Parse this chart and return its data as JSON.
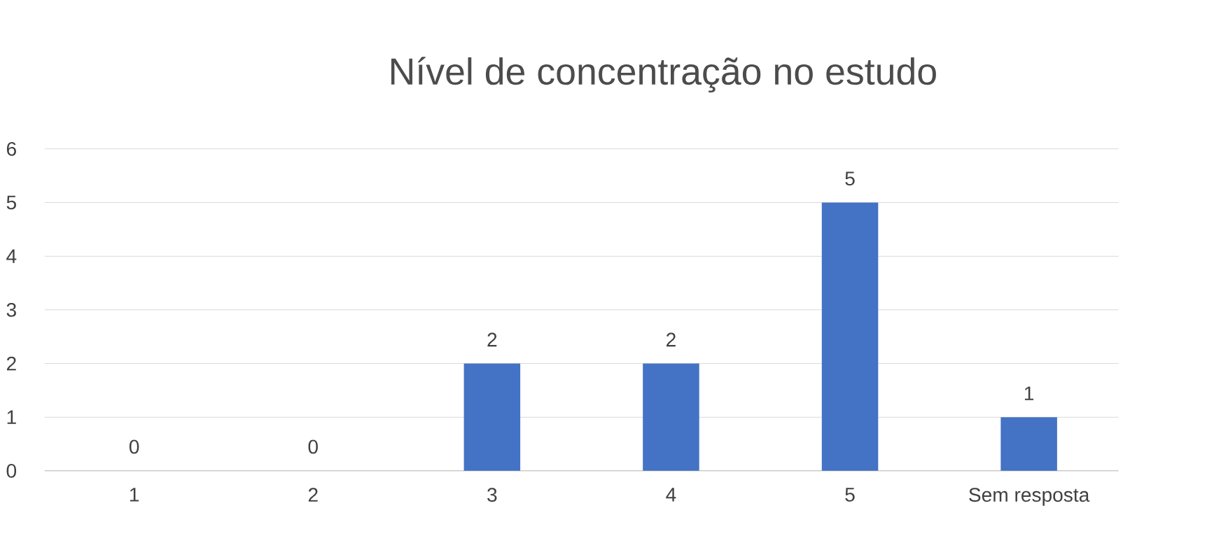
{
  "chart_data": {
    "type": "bar",
    "title": "Nível de concentração no estudo",
    "categories": [
      "1",
      "2",
      "3",
      "4",
      "5",
      "Sem resposta"
    ],
    "values": [
      0,
      0,
      2,
      2,
      5,
      1
    ],
    "color": "#4472c4",
    "ylim": [
      0,
      6
    ],
    "yticks": [
      0,
      1,
      2,
      3,
      4,
      5,
      6
    ],
    "grid": "y",
    "data_labels": true
  }
}
